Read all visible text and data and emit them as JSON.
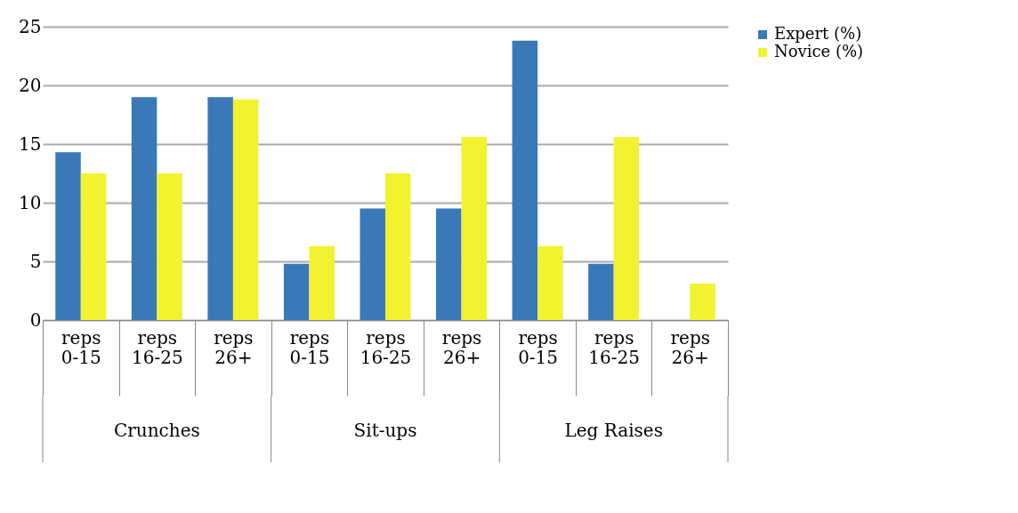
{
  "chart_data": {
    "type": "bar",
    "categories": [
      "reps 0-15",
      "reps 16-25",
      "reps 26+",
      "reps 0-15",
      "reps 16-25",
      "reps 26+",
      "reps 0-15",
      "reps 16-25",
      "reps 26+"
    ],
    "series": [
      {
        "name": "Expert (%)",
        "color": "#3a78b8",
        "values": [
          14.3,
          19.0,
          19.0,
          4.8,
          9.5,
          9.5,
          23.8,
          4.8,
          0
        ]
      },
      {
        "name": "Novice (%)",
        "color": "#f2f230",
        "values": [
          12.5,
          12.5,
          18.8,
          6.3,
          12.5,
          15.6,
          6.3,
          15.6,
          3.1
        ]
      }
    ],
    "annotations": [
      "Crunches",
      "Sit-ups",
      "Leg Raises"
    ],
    "ylim": [
      0,
      25
    ],
    "yticks": [
      0,
      5,
      10,
      15,
      20,
      25
    ],
    "grid": "y",
    "legend": "right"
  }
}
